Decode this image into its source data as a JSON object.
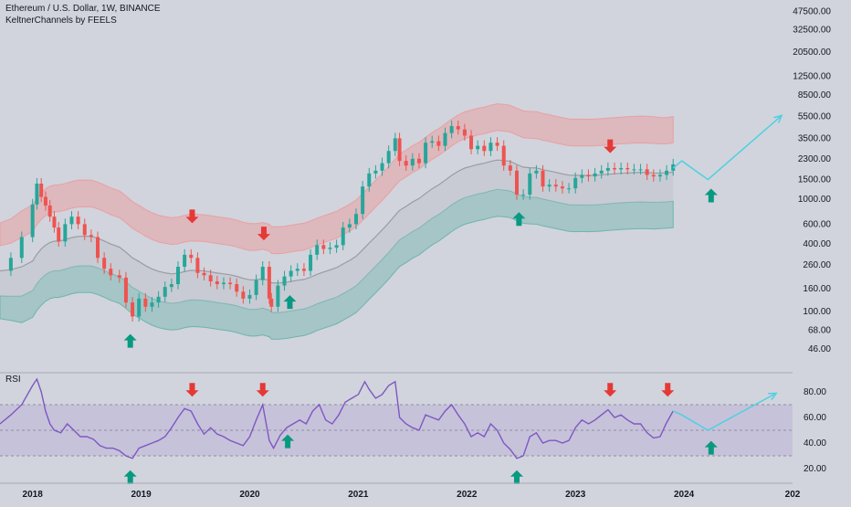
{
  "header": {
    "title": "Ethereum / U.S. Dollar, 1W, BINANCE",
    "indicator": "KeltnerChannels by FEELS"
  },
  "rsi_panel": {
    "label": "RSI"
  },
  "colors": {
    "background": "#d1d4dc",
    "up_candle": "#26a69a",
    "down_candle": "#ef5350",
    "upper_band": "#e8a0a4",
    "lower_band": "#6fb3ad",
    "basis": "#9a9ca3",
    "rsi_line": "#7e57c2",
    "rsi_band": "#b8aed8",
    "projection": "#4dd0e1",
    "arrow_up": "#089981",
    "arrow_down": "#e53935"
  },
  "chart_data": [
    {
      "type": "candlestick",
      "title": "Ethereum / U.S. Dollar, 1W, BINANCE",
      "y_scale": "log",
      "ylim": [
        30,
        60000
      ],
      "xlim": [
        2017.7,
        2025.0
      ],
      "y_ticks": [
        "47500.00",
        "32500.00",
        "20500.00",
        "12500.00",
        "8500.00",
        "5500.00",
        "3500.00",
        "2300.00",
        "1500.00",
        "1000.00",
        "600.00",
        "400.00",
        "260.00",
        "160.00",
        "100.00",
        "68.00",
        "46.00"
      ],
      "x_ticks": [
        "2018",
        "2019",
        "2020",
        "2021",
        "2022",
        "2023",
        "2024",
        "202"
      ],
      "price_series": [
        [
          2017.7,
          230
        ],
        [
          2017.8,
          300
        ],
        [
          2017.9,
          460
        ],
        [
          2018.0,
          900
        ],
        [
          2018.04,
          1380
        ],
        [
          2018.08,
          1050
        ],
        [
          2018.12,
          880
        ],
        [
          2018.16,
          700
        ],
        [
          2018.2,
          560
        ],
        [
          2018.24,
          420
        ],
        [
          2018.3,
          600
        ],
        [
          2018.36,
          700
        ],
        [
          2018.42,
          600
        ],
        [
          2018.48,
          480
        ],
        [
          2018.54,
          460
        ],
        [
          2018.6,
          300
        ],
        [
          2018.66,
          240
        ],
        [
          2018.72,
          210
        ],
        [
          2018.8,
          200
        ],
        [
          2018.86,
          120
        ],
        [
          2018.92,
          90
        ],
        [
          2018.98,
          130
        ],
        [
          2019.04,
          110
        ],
        [
          2019.1,
          120
        ],
        [
          2019.16,
          135
        ],
        [
          2019.22,
          165
        ],
        [
          2019.28,
          175
        ],
        [
          2019.34,
          250
        ],
        [
          2019.4,
          320
        ],
        [
          2019.46,
          300
        ],
        [
          2019.52,
          220
        ],
        [
          2019.58,
          210
        ],
        [
          2019.64,
          185
        ],
        [
          2019.7,
          175
        ],
        [
          2019.76,
          180
        ],
        [
          2019.82,
          175
        ],
        [
          2019.88,
          150
        ],
        [
          2019.94,
          130
        ],
        [
          2020.0,
          140
        ],
        [
          2020.06,
          190
        ],
        [
          2020.12,
          250
        ],
        [
          2020.18,
          130
        ],
        [
          2020.2,
          110
        ],
        [
          2020.26,
          170
        ],
        [
          2020.32,
          205
        ],
        [
          2020.38,
          230
        ],
        [
          2020.44,
          240
        ],
        [
          2020.5,
          230
        ],
        [
          2020.56,
          320
        ],
        [
          2020.62,
          390
        ],
        [
          2020.68,
          360
        ],
        [
          2020.74,
          370
        ],
        [
          2020.8,
          390
        ],
        [
          2020.86,
          560
        ],
        [
          2020.92,
          600
        ],
        [
          2020.98,
          740
        ],
        [
          2021.04,
          1300
        ],
        [
          2021.1,
          1700
        ],
        [
          2021.16,
          1800
        ],
        [
          2021.22,
          2100
        ],
        [
          2021.28,
          2700
        ],
        [
          2021.34,
          3500
        ],
        [
          2021.38,
          2200
        ],
        [
          2021.44,
          2000
        ],
        [
          2021.5,
          2300
        ],
        [
          2021.56,
          2100
        ],
        [
          2021.62,
          3200
        ],
        [
          2021.68,
          3300
        ],
        [
          2021.74,
          3000
        ],
        [
          2021.8,
          3900
        ],
        [
          2021.86,
          4500
        ],
        [
          2021.92,
          4200
        ],
        [
          2021.98,
          3700
        ],
        [
          2022.04,
          2800
        ],
        [
          2022.1,
          3000
        ],
        [
          2022.16,
          2700
        ],
        [
          2022.22,
          3200
        ],
        [
          2022.28,
          3000
        ],
        [
          2022.34,
          2000
        ],
        [
          2022.4,
          1800
        ],
        [
          2022.46,
          1100
        ],
        [
          2022.52,
          1100
        ],
        [
          2022.58,
          1700
        ],
        [
          2022.64,
          1800
        ],
        [
          2022.7,
          1300
        ],
        [
          2022.76,
          1350
        ],
        [
          2022.82,
          1300
        ],
        [
          2022.88,
          1250
        ],
        [
          2022.94,
          1250
        ],
        [
          2023.0,
          1550
        ],
        [
          2023.06,
          1650
        ],
        [
          2023.12,
          1600
        ],
        [
          2023.18,
          1700
        ],
        [
          2023.24,
          1800
        ],
        [
          2023.3,
          1900
        ],
        [
          2023.36,
          1850
        ],
        [
          2023.42,
          1900
        ],
        [
          2023.48,
          1850
        ],
        [
          2023.54,
          1850
        ],
        [
          2023.6,
          1850
        ],
        [
          2023.66,
          1650
        ],
        [
          2023.72,
          1600
        ],
        [
          2023.78,
          1650
        ],
        [
          2023.84,
          1800
        ],
        [
          2023.9,
          2050
        ]
      ],
      "projection": [
        [
          2023.9,
          1900
        ],
        [
          2023.98,
          2200
        ],
        [
          2024.22,
          1500
        ],
        [
          2024.9,
          5600
        ]
      ],
      "signals": [
        {
          "type": "buy",
          "x": 2018.9,
          "y": 54
        },
        {
          "type": "sell",
          "x": 2019.47,
          "y": 710
        },
        {
          "type": "sell",
          "x": 2020.13,
          "y": 500
        },
        {
          "type": "buy",
          "x": 2020.37,
          "y": 120
        },
        {
          "type": "buy",
          "x": 2022.48,
          "y": 660
        },
        {
          "type": "sell",
          "x": 2023.32,
          "y": 3000
        },
        {
          "type": "buy",
          "x": 2024.25,
          "y": 1070
        }
      ]
    },
    {
      "type": "line",
      "name": "RSI",
      "ylim": [
        10,
        95
      ],
      "y_ticks": [
        "80.00",
        "60.00",
        "40.00",
        "20.00"
      ],
      "band": [
        30,
        70
      ],
      "midline": 50,
      "values": [
        [
          2017.7,
          55
        ],
        [
          2017.8,
          62
        ],
        [
          2017.9,
          70
        ],
        [
          2018.0,
          85
        ],
        [
          2018.04,
          90
        ],
        [
          2018.08,
          80
        ],
        [
          2018.12,
          65
        ],
        [
          2018.16,
          55
        ],
        [
          2018.2,
          50
        ],
        [
          2018.26,
          48
        ],
        [
          2018.32,
          55
        ],
        [
          2018.38,
          50
        ],
        [
          2018.44,
          45
        ],
        [
          2018.5,
          45
        ],
        [
          2018.56,
          43
        ],
        [
          2018.62,
          38
        ],
        [
          2018.68,
          36
        ],
        [
          2018.74,
          36
        ],
        [
          2018.8,
          34
        ],
        [
          2018.86,
          30
        ],
        [
          2018.92,
          28
        ],
        [
          2018.98,
          36
        ],
        [
          2019.04,
          38
        ],
        [
          2019.1,
          40
        ],
        [
          2019.16,
          42
        ],
        [
          2019.22,
          45
        ],
        [
          2019.28,
          52
        ],
        [
          2019.34,
          60
        ],
        [
          2019.4,
          67
        ],
        [
          2019.46,
          65
        ],
        [
          2019.52,
          55
        ],
        [
          2019.58,
          47
        ],
        [
          2019.64,
          52
        ],
        [
          2019.7,
          47
        ],
        [
          2019.76,
          45
        ],
        [
          2019.82,
          42
        ],
        [
          2019.88,
          40
        ],
        [
          2019.94,
          38
        ],
        [
          2020.0,
          45
        ],
        [
          2020.06,
          58
        ],
        [
          2020.12,
          70
        ],
        [
          2020.18,
          42
        ],
        [
          2020.22,
          36
        ],
        [
          2020.28,
          46
        ],
        [
          2020.34,
          52
        ],
        [
          2020.4,
          55
        ],
        [
          2020.46,
          58
        ],
        [
          2020.52,
          55
        ],
        [
          2020.58,
          65
        ],
        [
          2020.64,
          70
        ],
        [
          2020.7,
          58
        ],
        [
          2020.76,
          55
        ],
        [
          2020.82,
          62
        ],
        [
          2020.88,
          72
        ],
        [
          2020.94,
          75
        ],
        [
          2021.0,
          78
        ],
        [
          2021.06,
          88
        ],
        [
          2021.1,
          82
        ],
        [
          2021.16,
          75
        ],
        [
          2021.22,
          78
        ],
        [
          2021.28,
          85
        ],
        [
          2021.34,
          88
        ],
        [
          2021.38,
          60
        ],
        [
          2021.44,
          55
        ],
        [
          2021.5,
          52
        ],
        [
          2021.56,
          50
        ],
        [
          2021.62,
          62
        ],
        [
          2021.68,
          60
        ],
        [
          2021.74,
          58
        ],
        [
          2021.8,
          65
        ],
        [
          2021.86,
          70
        ],
        [
          2021.92,
          62
        ],
        [
          2021.98,
          55
        ],
        [
          2022.04,
          45
        ],
        [
          2022.1,
          48
        ],
        [
          2022.16,
          45
        ],
        [
          2022.22,
          55
        ],
        [
          2022.28,
          50
        ],
        [
          2022.34,
          40
        ],
        [
          2022.4,
          35
        ],
        [
          2022.46,
          28
        ],
        [
          2022.52,
          30
        ],
        [
          2022.58,
          45
        ],
        [
          2022.64,
          48
        ],
        [
          2022.7,
          40
        ],
        [
          2022.76,
          42
        ],
        [
          2022.82,
          42
        ],
        [
          2022.88,
          40
        ],
        [
          2022.94,
          42
        ],
        [
          2023.0,
          52
        ],
        [
          2023.06,
          58
        ],
        [
          2023.12,
          55
        ],
        [
          2023.18,
          58
        ],
        [
          2023.24,
          62
        ],
        [
          2023.3,
          66
        ],
        [
          2023.36,
          60
        ],
        [
          2023.42,
          62
        ],
        [
          2023.48,
          58
        ],
        [
          2023.54,
          55
        ],
        [
          2023.6,
          55
        ],
        [
          2023.66,
          48
        ],
        [
          2023.72,
          44
        ],
        [
          2023.78,
          45
        ],
        [
          2023.84,
          56
        ],
        [
          2023.9,
          65
        ]
      ],
      "projection": [
        [
          2023.9,
          65
        ],
        [
          2023.98,
          62
        ],
        [
          2024.22,
          50
        ],
        [
          2024.85,
          79
        ]
      ],
      "signals": [
        {
          "type": "buy",
          "x": 2018.9,
          "y": 13
        },
        {
          "type": "sell",
          "x": 2019.47,
          "y": 82
        },
        {
          "type": "sell",
          "x": 2020.12,
          "y": 82
        },
        {
          "type": "buy",
          "x": 2020.35,
          "y": 41
        },
        {
          "type": "buy",
          "x": 2022.46,
          "y": 13
        },
        {
          "type": "sell",
          "x": 2023.32,
          "y": 82
        },
        {
          "type": "sell",
          "x": 2023.85,
          "y": 82
        },
        {
          "type": "buy",
          "x": 2024.25,
          "y": 36
        }
      ]
    }
  ]
}
